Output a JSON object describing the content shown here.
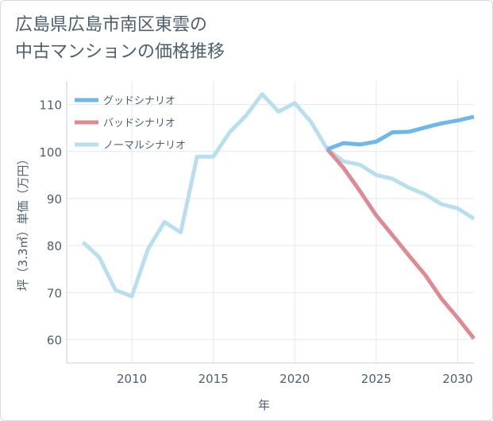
{
  "title_lines": [
    "広島県広島市南区東雲の",
    "中古マンションの価格推移"
  ],
  "chart_data": {
    "type": "line",
    "xlabel": "年",
    "ylabel": "坪（3.3㎡）単価（万円）",
    "xlim": [
      2006,
      2031
    ],
    "ylim": [
      55,
      115
    ],
    "xticks": [
      2010,
      2015,
      2020,
      2025,
      2030
    ],
    "yticks": [
      60,
      70,
      80,
      90,
      100,
      110
    ],
    "grid": true,
    "legend_position": "top-left",
    "series": [
      {
        "name": "グッドシナリオ",
        "color": "#6cb8ea",
        "x": [
          2022,
          2023,
          2024,
          2025,
          2026,
          2027,
          2028,
          2029,
          2030,
          2031
        ],
        "y": [
          100.5,
          101.8,
          101.5,
          102.1,
          104.1,
          104.2,
          105.1,
          106.0,
          106.6,
          107.4
        ]
      },
      {
        "name": "バッドシナリオ",
        "color": "#dd8a93",
        "x": [
          2022,
          2023,
          2024,
          2025,
          2026,
          2027,
          2028,
          2029,
          2030,
          2031
        ],
        "y": [
          100.5,
          96.5,
          91.6,
          86.4,
          82.2,
          77.9,
          73.8,
          68.7,
          64.6,
          60.2
        ]
      },
      {
        "name": "ノーマルシナリオ",
        "color": "#b9dfee",
        "x": [
          2007,
          2008,
          2009,
          2010,
          2011,
          2012,
          2013,
          2014,
          2015,
          2016,
          2017,
          2018,
          2019,
          2020,
          2021,
          2022,
          2023,
          2024,
          2025,
          2026,
          2027,
          2028,
          2029,
          2030,
          2031
        ],
        "y": [
          80.7,
          77.5,
          70.5,
          69.2,
          79.3,
          85.0,
          82.8,
          98.9,
          98.9,
          104.1,
          107.6,
          112.2,
          108.5,
          110.3,
          106.3,
          100.5,
          97.9,
          97.2,
          95.0,
          94.2,
          92.3,
          90.9,
          88.8,
          87.9,
          85.7
        ]
      }
    ]
  }
}
